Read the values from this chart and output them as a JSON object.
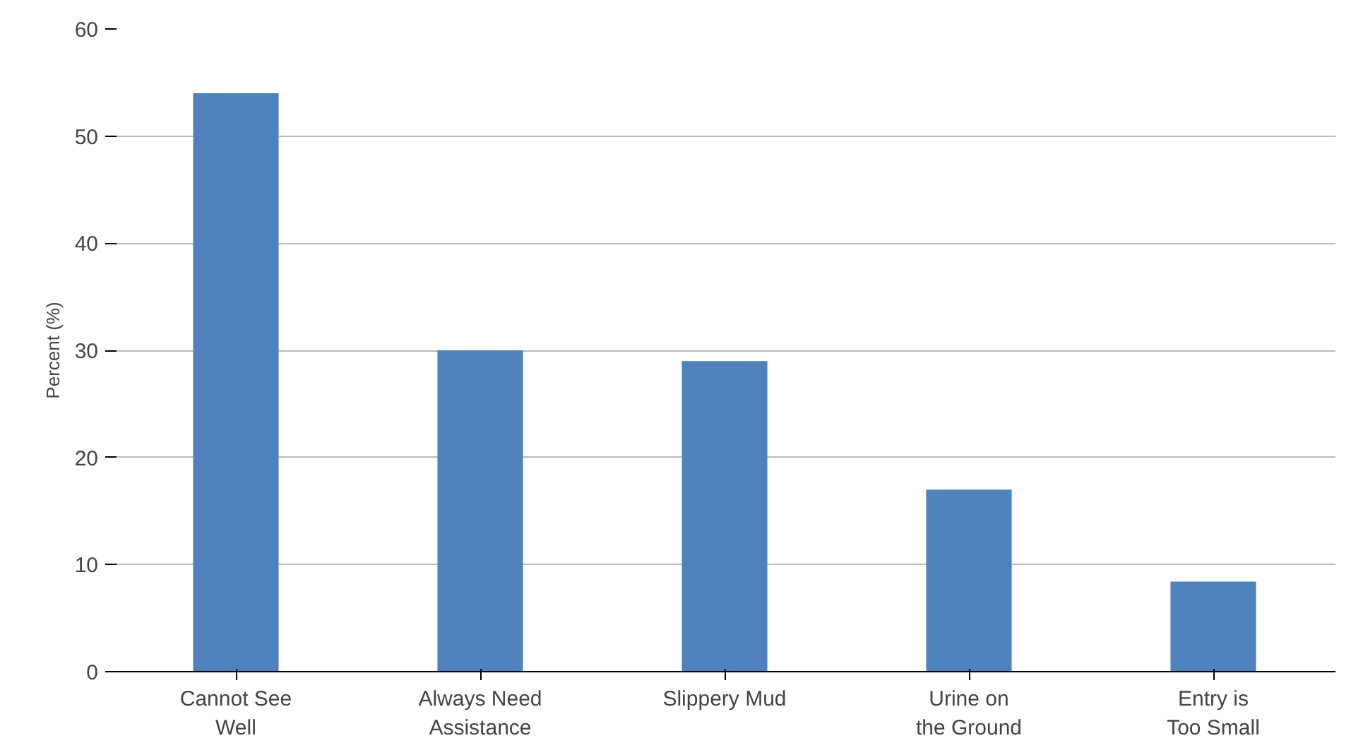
{
  "chart_data": {
    "type": "bar",
    "ylabel": "Percent (%)",
    "categories": [
      "Cannot See Well",
      "Always Need Assistance",
      "Slippery Mud",
      "Urine on the Ground",
      "Entry is Too Small"
    ],
    "values": [
      54,
      30,
      29,
      17,
      8.4
    ],
    "color": "#4f81bd",
    "ylim": [
      0,
      60
    ],
    "yticks": [
      0,
      10,
      20,
      30,
      40,
      50,
      60
    ],
    "grid": "y"
  }
}
